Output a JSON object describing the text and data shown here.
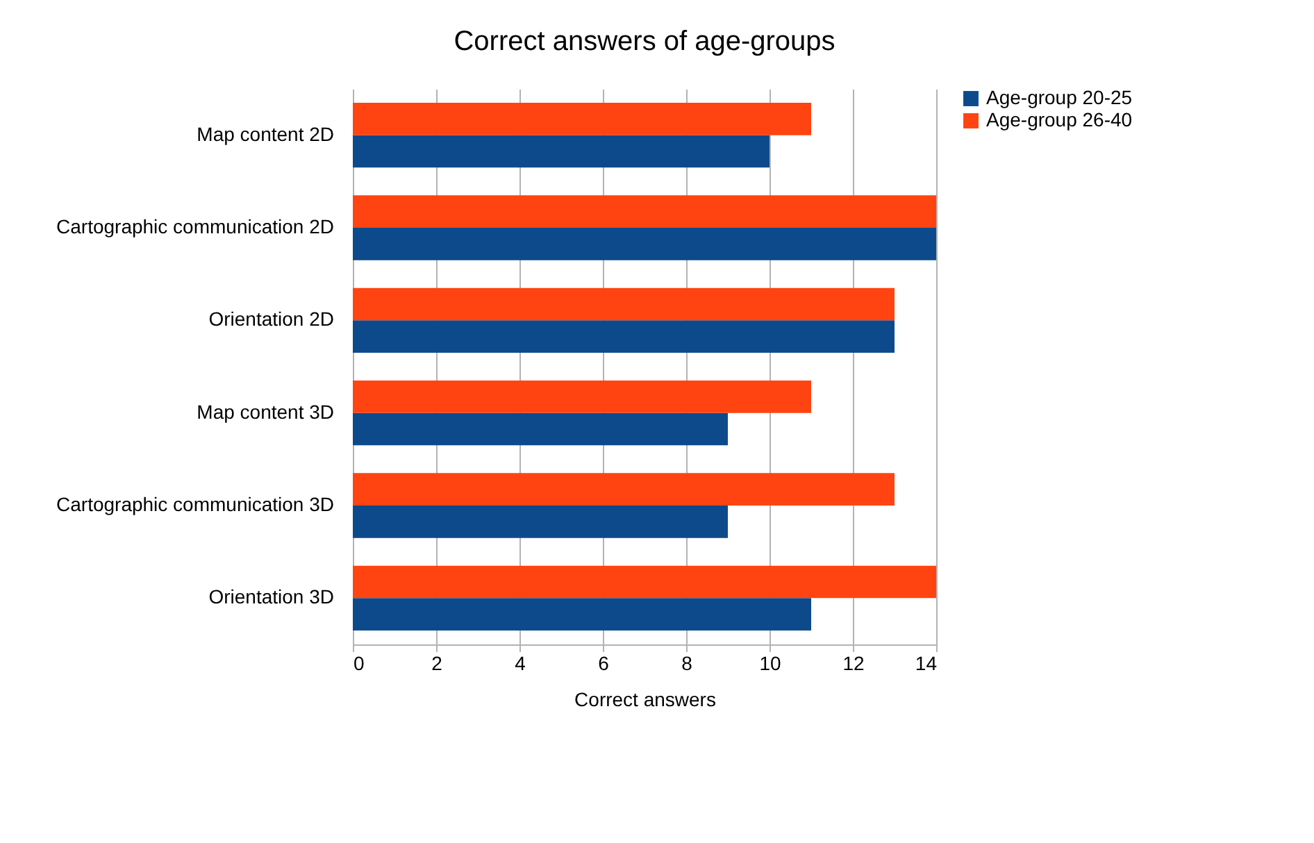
{
  "chart_data": {
    "type": "bar",
    "orientation": "horizontal",
    "title": "Correct answers of age-groups",
    "xlabel": "Correct answers",
    "categories": [
      "Map content 2D",
      "Cartographic communication 2D",
      "Orientation 2D",
      "Map content 3D",
      "Cartographic communication 3D",
      "Orientation 3D"
    ],
    "series": [
      {
        "name": "Age-group 20-25",
        "color": "#0d4a8c",
        "values": [
          10,
          14,
          13,
          9,
          9,
          11
        ]
      },
      {
        "name": "Age-group 26-40",
        "color": "#ff4411",
        "values": [
          11,
          14,
          13,
          11,
          13,
          14
        ]
      }
    ],
    "xlim": [
      0,
      14
    ],
    "xticks": [
      0,
      2,
      4,
      6,
      8,
      10,
      12,
      14
    ],
    "grid": "x",
    "legend": "right"
  }
}
